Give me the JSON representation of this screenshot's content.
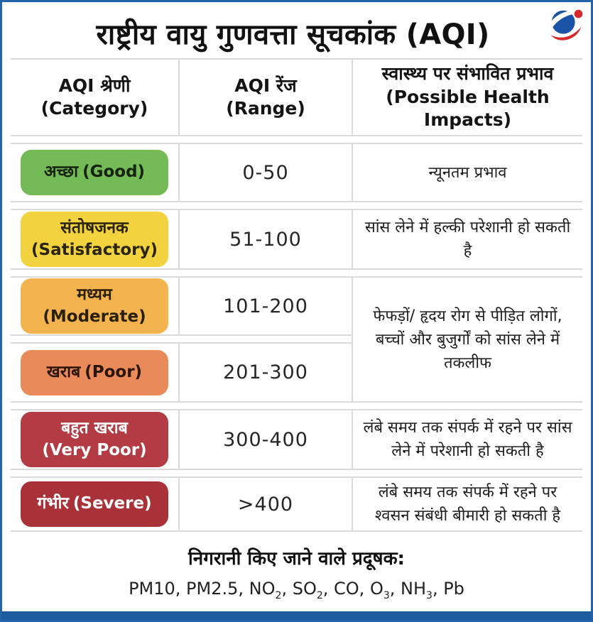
{
  "frame": {
    "border_color": "#2264A7",
    "bottom_bar_color": "#1E5C9E",
    "grid_line_color": "#DADADA"
  },
  "title": "राष्ट्रीय वायु गुणवत्ता सूचकांक (AQI)",
  "logo": {
    "blue": "#1B53A6",
    "red": "#D6292E"
  },
  "table": {
    "headers": {
      "category": {
        "line1": "AQI श्रेणी",
        "line2": "(Category)"
      },
      "range": {
        "line1": "AQI रेंज",
        "line2": "(Range)"
      },
      "impact": "स्वास्थ्य पर संभावित प्रभाव (Possible Health Impacts)"
    },
    "rows": [
      {
        "name_hi": "अच्छा",
        "name_en": "(Good)",
        "color": "#74BB57",
        "text_color": "#16230f",
        "range": "0-50",
        "impact": "न्यूनतम प्रभाव"
      },
      {
        "name_hi": "संतोषजनक",
        "name_en": "(Satisfactory)",
        "color": "#F2D23E",
        "text_color": "#2a2408",
        "range": "51-100",
        "impact": "सांस लेने में हल्की परेशानी हो सकती है"
      },
      {
        "name_hi": "मध्यम",
        "name_en": "(Moderate)",
        "color": "#F3B44F",
        "text_color": "#2a2009",
        "range": "101-200"
      },
      {
        "name_hi": "खराब",
        "name_en": "(Poor)",
        "color": "#E98A5B",
        "text_color": "#2b1507",
        "range": "201-300"
      },
      {
        "name_hi": "बहुत खराब",
        "name_en": "(Very Poor)",
        "color": "#B23B44",
        "text_color": "#ffffff",
        "range": "300-400",
        "impact": "लंबे समय तक संपर्क में रहने पर सांस लेने में परेशानी हो सकती है"
      },
      {
        "name_hi": "गंभीर",
        "name_en": "(Severe)",
        "color": "#A93238",
        "text_color": "#ffffff",
        "range": ">400",
        "impact": "लंबे समय तक संपर्क में रहने पर श्वसन संबंधी बीमारी हो सकती है"
      }
    ],
    "merged_impact": "फेफड़ों/ हृदय रोग से पीड़ित लोगों, बच्चों और बुजुर्गों को सांस लेने में तकलीफ"
  },
  "footer": {
    "label": "निगरानी किए जाने वाले प्रदूषक:",
    "pollutants": [
      {
        "base": "PM10",
        "sub": "",
        "sep": ", "
      },
      {
        "base": "PM2.5",
        "sub": "",
        "sep": ", "
      },
      {
        "base": "NO",
        "sub": "2",
        "sep": ", "
      },
      {
        "base": "SO",
        "sub": "2",
        "sep": ", "
      },
      {
        "base": "CO",
        "sub": "",
        "sep": ", "
      },
      {
        "base": "O",
        "sub": "3",
        "sep": ", "
      },
      {
        "base": "NH",
        "sub": "3",
        "sep": ", "
      },
      {
        "base": "Pb",
        "sub": "",
        "sep": ""
      }
    ]
  }
}
